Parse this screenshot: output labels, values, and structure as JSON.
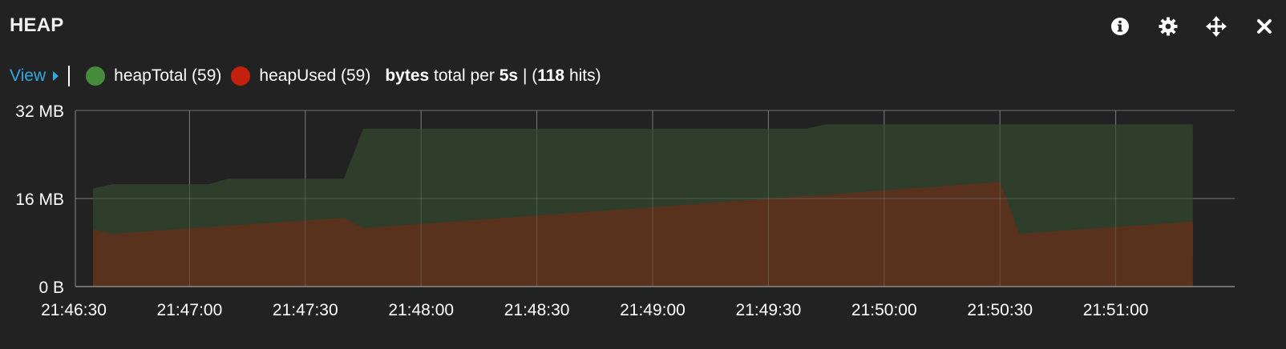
{
  "panel": {
    "title": "HEAP",
    "tools": [
      {
        "name": "info-icon"
      },
      {
        "name": "gear-icon"
      },
      {
        "name": "move-icon"
      },
      {
        "name": "close-icon"
      }
    ]
  },
  "legend": {
    "view_label": "View",
    "items": [
      {
        "label": "heapTotal (59)",
        "color": "#468a3c"
      },
      {
        "label": "heapUsed (59)",
        "color": "#c4200e"
      }
    ],
    "unit_bold": "bytes",
    "unit_text": " total per ",
    "interval_bold": "5s",
    "hits_prefix": " | (",
    "hits_bold": "118",
    "hits_suffix": " hits)"
  },
  "colors": {
    "heapTotal_fill": "#2e3f2b",
    "heapUsed_fill": "#5b321e",
    "grid": "#6f6f6f",
    "axis": "#8a8a8a"
  },
  "chart_data": {
    "type": "area",
    "x_start": "21:46:30",
    "x_step_seconds": 5,
    "xlim": [
      "21:46:30",
      "21:51:25"
    ],
    "x_ticks": [
      "21:46:30",
      "21:47:00",
      "21:47:30",
      "21:48:00",
      "21:48:30",
      "21:49:00",
      "21:49:30",
      "21:50:00",
      "21:50:30",
      "21:51:00"
    ],
    "y_ticks": [
      "32 MB",
      "16 MB",
      "0 B"
    ],
    "ylim": [
      0,
      32
    ],
    "y_unit": "MB",
    "stacking": "overlay",
    "grid": true,
    "series": [
      {
        "name": "heapTotal",
        "points": [
          [
            "21:46:35",
            17.8
          ],
          [
            "21:46:40",
            18.6
          ],
          [
            "21:47:05",
            18.6
          ],
          [
            "21:47:10",
            19.6
          ],
          [
            "21:47:40",
            19.6
          ],
          [
            "21:47:45",
            28.7
          ],
          [
            "21:49:40",
            28.7
          ],
          [
            "21:49:45",
            29.5
          ],
          [
            "21:51:20",
            29.5
          ]
        ]
      },
      {
        "name": "heapUsed",
        "points": [
          [
            "21:46:35",
            10.4
          ],
          [
            "21:46:40",
            9.6
          ],
          [
            "21:47:40",
            12.5
          ],
          [
            "21:47:45",
            10.6
          ],
          [
            "21:50:30",
            19.0
          ],
          [
            "21:50:35",
            9.6
          ],
          [
            "21:51:20",
            11.8
          ]
        ]
      }
    ]
  }
}
